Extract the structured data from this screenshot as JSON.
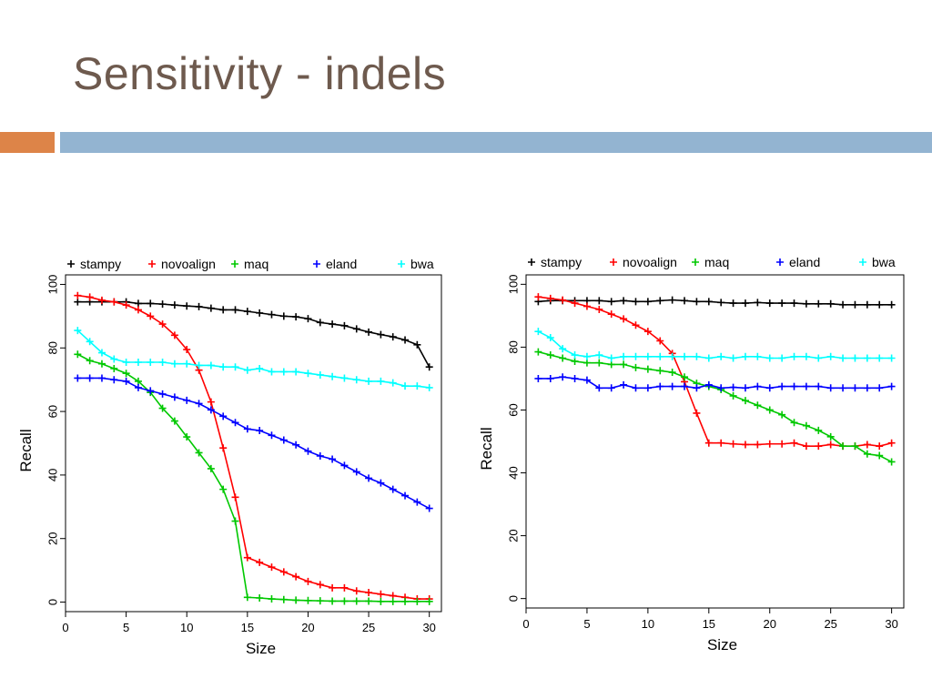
{
  "slide": {
    "title": "Sensitivity - indels"
  },
  "colors": {
    "title": "#6e5a4e",
    "accent_orange": "#dd8448",
    "accent_blue": "#93b4d1",
    "stampy": "#000000",
    "novoalign": "#ff0000",
    "maq": "#00c800",
    "eland": "#0000ff",
    "bwa": "#00ffff"
  },
  "chart_data": [
    {
      "type": "line",
      "title": "",
      "xlabel": "Size",
      "ylabel": "Recall",
      "xlim": [
        0,
        31
      ],
      "ylim": [
        -3,
        103
      ],
      "xticks": [
        0,
        5,
        10,
        15,
        20,
        25,
        30
      ],
      "yticks": [
        0,
        20,
        40,
        60,
        80,
        100
      ],
      "legend": "top",
      "grid": false,
      "x": [
        1,
        2,
        3,
        4,
        5,
        6,
        7,
        8,
        9,
        10,
        11,
        12,
        13,
        14,
        15,
        16,
        17,
        18,
        19,
        20,
        21,
        22,
        23,
        24,
        25,
        26,
        27,
        28,
        29,
        30
      ],
      "series": [
        {
          "name": "stampy",
          "color": "#000000",
          "values": [
            94.5,
            94.5,
            94.5,
            94.5,
            94.5,
            94,
            94,
            93.8,
            93.5,
            93.2,
            93,
            92.5,
            92,
            92,
            91.5,
            91,
            90.5,
            90,
            89.8,
            89.2,
            88,
            87.5,
            87,
            86,
            85,
            84.2,
            83.5,
            82.5,
            81,
            74
          ]
        },
        {
          "name": "novoalign",
          "color": "#ff0000",
          "values": [
            96.5,
            96,
            95,
            94.5,
            93.5,
            92,
            90,
            87.5,
            84,
            79.5,
            73,
            63,
            48.5,
            33,
            14,
            12.5,
            11,
            9.5,
            8,
            6.5,
            5.5,
            4.5,
            4.5,
            3.5,
            3,
            2.5,
            2,
            1.5,
            1,
            1
          ]
        },
        {
          "name": "maq",
          "color": "#00c800",
          "values": [
            78,
            76,
            75,
            73.5,
            72,
            69.5,
            66,
            61,
            57,
            52,
            47,
            42,
            35.5,
            25.5,
            1.5,
            1.3,
            1,
            0.8,
            0.6,
            0.5,
            0.4,
            0.3,
            0.3,
            0.3,
            0.3,
            0.2,
            0.2,
            0.2,
            0.2,
            0.2
          ]
        },
        {
          "name": "eland",
          "color": "#0000ff",
          "values": [
            70.5,
            70.5,
            70.5,
            70,
            69.5,
            67.5,
            66.5,
            65.5,
            64.5,
            63.5,
            62.5,
            60.5,
            58.5,
            56.5,
            54.5,
            54,
            52.5,
            51,
            49.5,
            47.5,
            46,
            45,
            43,
            41,
            39,
            37.5,
            35.5,
            33.5,
            31.5,
            29.5
          ]
        },
        {
          "name": "bwa",
          "color": "#00ffff",
          "values": [
            85.5,
            82,
            78.5,
            76.5,
            75.5,
            75.5,
            75.5,
            75.5,
            75,
            75,
            74.5,
            74.5,
            74,
            74,
            73,
            73.5,
            72.5,
            72.5,
            72.5,
            72,
            71.5,
            71,
            70.5,
            70,
            69.5,
            69.5,
            69,
            68,
            68,
            67.5
          ]
        }
      ]
    },
    {
      "type": "line",
      "title": "",
      "xlabel": "Size",
      "ylabel": "Recall",
      "xlim": [
        0,
        31
      ],
      "ylim": [
        -3,
        103
      ],
      "xticks": [
        0,
        5,
        10,
        15,
        20,
        25,
        30
      ],
      "yticks": [
        0,
        20,
        40,
        60,
        80,
        100
      ],
      "legend": "top",
      "grid": false,
      "x": [
        1,
        2,
        3,
        4,
        5,
        6,
        7,
        8,
        9,
        10,
        11,
        12,
        13,
        14,
        15,
        16,
        17,
        18,
        19,
        20,
        21,
        22,
        23,
        24,
        25,
        26,
        27,
        28,
        29,
        30
      ],
      "series": [
        {
          "name": "stampy",
          "color": "#000000",
          "values": [
            94.5,
            94.8,
            94.8,
            94.8,
            94.8,
            94.8,
            94.5,
            94.8,
            94.5,
            94.5,
            94.8,
            95,
            94.8,
            94.5,
            94.5,
            94.2,
            94,
            94,
            94.2,
            94,
            94,
            94,
            93.8,
            93.8,
            93.8,
            93.5,
            93.5,
            93.5,
            93.5,
            93.5
          ]
        },
        {
          "name": "novoalign",
          "color": "#ff0000",
          "values": [
            96,
            95.5,
            95,
            94,
            93,
            92,
            90.5,
            89,
            87,
            85,
            82,
            78,
            69,
            59,
            49.5,
            49.5,
            49.2,
            49,
            49,
            49.2,
            49.2,
            49.5,
            48.5,
            48.5,
            49,
            48.5,
            48.5,
            49,
            48.5,
            49.5
          ]
        },
        {
          "name": "maq",
          "color": "#00c800",
          "values": [
            78.5,
            77.5,
            76.5,
            75.5,
            75,
            75,
            74.5,
            74.5,
            73.5,
            73,
            72.5,
            72,
            70.5,
            68.5,
            67.5,
            66.5,
            64.5,
            63,
            61.5,
            60,
            58.5,
            56,
            55,
            53.5,
            51.5,
            48.5,
            48.5,
            46,
            45.5,
            43.5
          ]
        },
        {
          "name": "eland",
          "color": "#0000ff",
          "values": [
            70,
            70,
            70.5,
            70,
            69.5,
            67,
            67,
            68,
            67,
            67,
            67.5,
            67.5,
            67.5,
            67,
            68,
            67,
            67.2,
            67,
            67.5,
            67,
            67.5,
            67.5,
            67.5,
            67.5,
            67,
            67,
            67,
            67,
            67,
            67.5
          ]
        },
        {
          "name": "bwa",
          "color": "#00ffff",
          "values": [
            85,
            83,
            79.5,
            77.5,
            77,
            77.5,
            76.5,
            77,
            77,
            77,
            77,
            77,
            77,
            77,
            76.5,
            77,
            76.5,
            77,
            77,
            76.5,
            76.5,
            77,
            77,
            76.5,
            77,
            76.5,
            76.5,
            76.5,
            76.5,
            76.5
          ]
        }
      ]
    }
  ]
}
